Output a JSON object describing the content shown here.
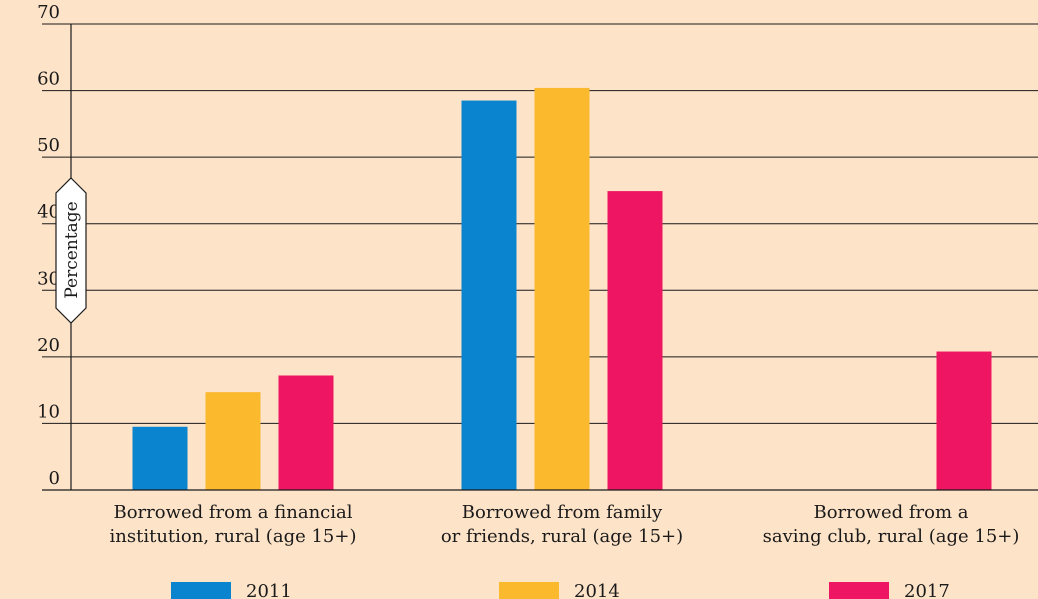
{
  "chart_data": {
    "type": "bar",
    "title": "",
    "ylabel": "Percentage",
    "xlabel": "",
    "ylim": [
      0,
      70
    ],
    "yticks": [
      0,
      10,
      20,
      30,
      40,
      50,
      60,
      70
    ],
    "grid": true,
    "legend_position": "bottom",
    "categories": [
      [
        "Borrowed from a financial",
        "institution, rural (age 15+)"
      ],
      [
        "Borrowed from family",
        "or friends, rural (age 15+)"
      ],
      [
        "Borrowed from a",
        "saving club, rural (age 15+)"
      ]
    ],
    "series": [
      {
        "name": "2011",
        "color": "#0a84cf",
        "values": [
          9.5,
          58.5,
          null
        ]
      },
      {
        "name": "2014",
        "color": "#fbb92e",
        "values": [
          14.7,
          60.4,
          null
        ]
      },
      {
        "name": "2017",
        "color": "#ee1562",
        "values": [
          17.2,
          44.9,
          20.8
        ]
      }
    ]
  }
}
